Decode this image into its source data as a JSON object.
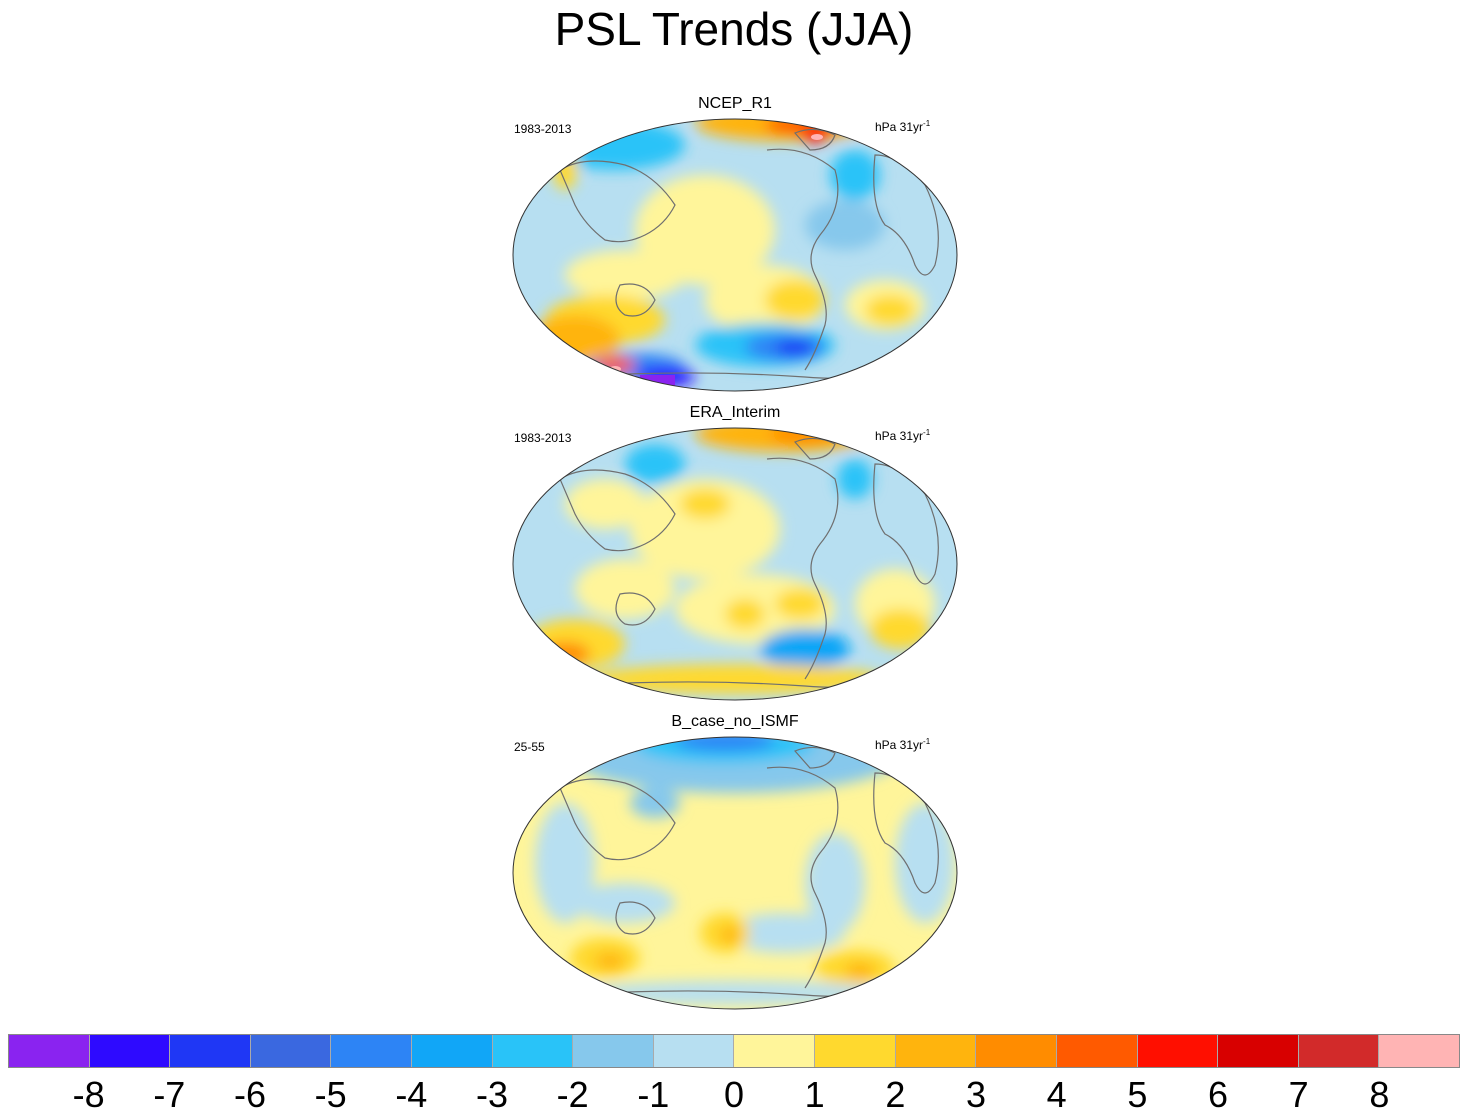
{
  "title": "PSL Trends (JJA)",
  "panels": [
    {
      "name": "NCEP_R1",
      "period": "1983-2013",
      "units": "hPa 31yr",
      "units_exp": "-1"
    },
    {
      "name": "ERA_Interim",
      "period": "1983-2013",
      "units": "hPa 31yr",
      "units_exp": "-1"
    },
    {
      "name": "B_case_no_ISMF",
      "period": "25-55",
      "units": "hPa 31yr",
      "units_exp": "-1"
    }
  ],
  "chart_data": {
    "type": "heatmap",
    "title": "PSL Trends (JJA)",
    "projection": "Robinson, Pacific-centered",
    "variable": "PSL trend",
    "colorbar": {
      "labels": [
        "-8",
        "-7",
        "-6",
        "-5",
        "-4",
        "-3",
        "-2",
        "-1",
        "0",
        "1",
        "2",
        "3",
        "4",
        "5",
        "6",
        "7",
        "8"
      ],
      "colors": [
        "#8a23f0",
        "#2e0aff",
        "#1f37f5",
        "#3a68e0",
        "#2d84f5",
        "#11a6f7",
        "#29c3f8",
        "#86c8ec",
        "#b7dff1",
        "#fff59a",
        "#ffd92e",
        "#ffb40d",
        "#ff8c00",
        "#ff5a00",
        "#ff0f00",
        "#d80000",
        "#d22a2a",
        "#ffb4b4"
      ]
    },
    "panels": [
      {
        "name": "NCEP_R1",
        "period": "1983-2013",
        "dominant_levels": [
          -2,
          -1,
          0,
          1
        ],
        "features": [
          {
            "region": "Arctic / Greenland",
            "level": 5
          },
          {
            "region": "Southern Ocean near Antarctica",
            "level": -8
          },
          {
            "region": "South Pacific",
            "level": -5
          },
          {
            "region": "Southern Indian Ocean",
            "level": 3
          }
        ]
      },
      {
        "name": "ERA_Interim",
        "period": "1983-2013",
        "dominant_levels": [
          -2,
          -1,
          0,
          1
        ],
        "features": [
          {
            "region": "Arctic / Greenland",
            "level": 4
          },
          {
            "region": "South Pacific",
            "level": -3
          },
          {
            "region": "Southern Indian Ocean",
            "level": 3
          },
          {
            "region": "South Atlantic",
            "level": 3
          }
        ]
      },
      {
        "name": "B_case_no_ISMF",
        "period": "25-55",
        "dominant_levels": [
          -1,
          0,
          1
        ],
        "features": [
          {
            "region": "Arctic",
            "level": -4
          },
          {
            "region": "Southern Indian Ocean",
            "level": 3
          },
          {
            "region": "South Pacific",
            "level": 2
          },
          {
            "region": "South Atlantic",
            "level": 3
          }
        ]
      }
    ]
  }
}
